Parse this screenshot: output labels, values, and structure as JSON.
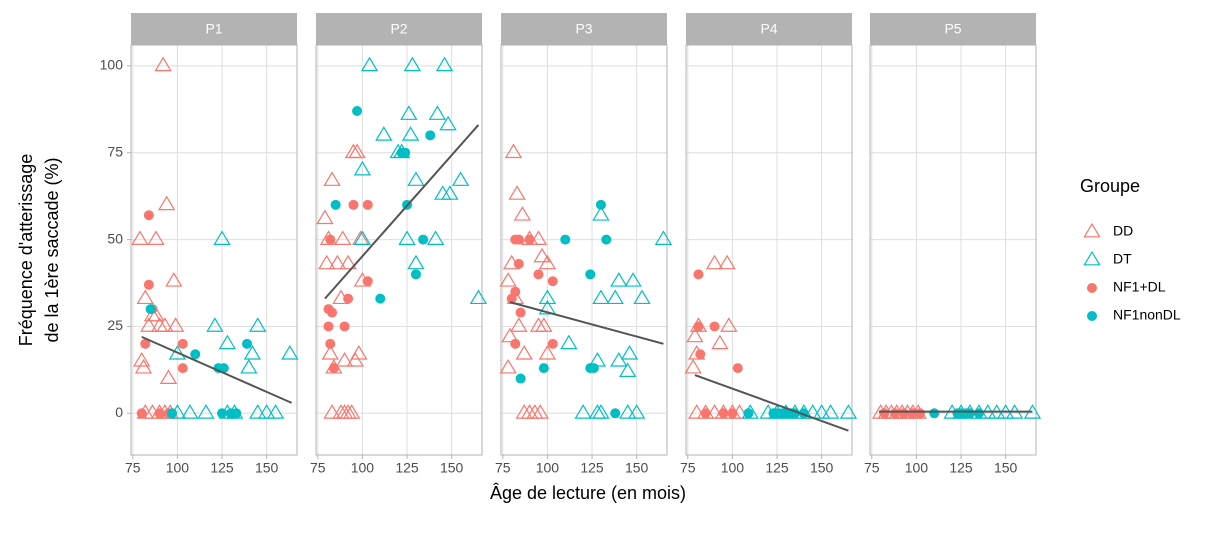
{
  "chart_data": {
    "type": "scatter",
    "xlabel": "Âge de lecture (en mois)",
    "ylabel": [
      "Fréquence d'atterissage",
      "de la 1ère saccade (%)"
    ],
    "legend_title": "Groupe",
    "groups": [
      {
        "name": "DD",
        "color": "#F8766D",
        "marker": "triangle-open"
      },
      {
        "name": "DT",
        "color": "#00BFC4",
        "marker": "triangle-open"
      },
      {
        "name": "NF1+DL",
        "color": "#F8766D",
        "marker": "circle"
      },
      {
        "name": "NF1nonDL",
        "color": "#00BFC4",
        "marker": "circle"
      }
    ],
    "trend_color": "#555555",
    "xlim": [
      74,
      167
    ],
    "xticks": [
      75,
      100,
      125,
      150
    ],
    "ylim": [
      -12,
      106
    ],
    "yticks": [
      0,
      25,
      50,
      75,
      100
    ],
    "grid": true,
    "panels": [
      {
        "title": "P1",
        "series": [
          {
            "x": [
              79,
              82,
              80,
              81,
              84,
              86,
              88,
              90,
              92,
              94,
              95,
              98,
              99,
              82,
              86,
              90,
              93,
              96,
              88,
              93
            ],
            "values": [
              50,
              33,
              15,
              13,
              25,
              28,
              50,
              25,
              100,
              60,
              10,
              38,
              25,
              0,
              0,
              0,
              0,
              0,
              28,
              25
            ]
          },
          {
            "x": [
              125,
              121,
              145,
              128,
              100,
              142,
              163,
              140,
              100,
              107,
              116,
              128,
              132,
              145,
              150,
              155
            ],
            "values": [
              50,
              25,
              25,
              20,
              17,
              17,
              17,
              13,
              0,
              0,
              0,
              0,
              0,
              0,
              0,
              0
            ]
          },
          {
            "x": [
              84,
              84,
              82,
              103,
              103,
              80,
              90,
              95,
              86
            ],
            "values": [
              57,
              37,
              20,
              20,
              13,
              0,
              0,
              0,
              30
            ]
          },
          {
            "x": [
              85,
              110,
              123,
              126,
              139,
              97,
              125,
              130,
              133
            ],
            "values": [
              30,
              17,
              13,
              13,
              20,
              0,
              0,
              0,
              0
            ]
          }
        ],
        "trend": {
          "x": [
            80,
            164
          ],
          "values": [
            22,
            3
          ]
        }
      },
      {
        "title": "P2",
        "series": [
          {
            "x": [
              79,
              80,
              81,
              83,
              86,
              88,
              89,
              92,
              95,
              97,
              99,
              100,
              98,
              90,
              82,
              83,
              90,
              92,
              94,
              88,
              84,
              96
            ],
            "values": [
              56,
              43,
              50,
              67,
              43,
              33,
              50,
              43,
              75,
              75,
              50,
              38,
              17,
              15,
              17,
              0,
              0,
              0,
              0,
              0,
              13,
              15
            ]
          },
          {
            "x": [
              104,
              128,
              146,
              126,
              142,
              112,
              127,
              148,
              120,
              100,
              130,
              155,
              145,
              149,
              100,
              125,
              141,
              130,
              165,
              122
            ],
            "values": [
              100,
              100,
              100,
              86,
              86,
              80,
              80,
              83,
              75,
              70,
              67,
              67,
              63,
              63,
              50,
              50,
              50,
              43,
              33,
              75
            ]
          },
          {
            "x": [
              81,
              83,
              81,
              82,
              84,
              82,
              90,
              95,
              103,
              103,
              92
            ],
            "values": [
              30,
              29,
              25,
              20,
              13,
              50,
              25,
              60,
              60,
              38,
              33
            ]
          },
          {
            "x": [
              85,
              97,
              122,
              124,
              125,
              138,
              134,
              130,
              110
            ],
            "values": [
              60,
              87,
              75,
              75,
              60,
              80,
              50,
              40,
              33
            ]
          }
        ],
        "trend": {
          "x": [
            79,
            165
          ],
          "values": [
            33,
            83
          ]
        }
      },
      {
        "title": "P3",
        "series": [
          {
            "x": [
              81,
              83,
              86,
              80,
              78,
              82,
              84,
              79,
              78,
              87,
              90,
              95,
              95,
              98,
              100,
              90,
              93,
              96,
              87,
              100,
              97
            ],
            "values": [
              75,
              63,
              57,
              43,
              38,
              33,
              25,
              22,
              13,
              17,
              50,
              50,
              25,
              25,
              43,
              0,
              0,
              0,
              0,
              17,
              45
            ]
          },
          {
            "x": [
              165,
              130,
              100,
              148,
              140,
              138,
              153,
              130,
              100,
              112,
              128,
              146,
              140,
              145,
              120,
              128,
              130,
              145,
              150
            ],
            "values": [
              50,
              57,
              33,
              38,
              38,
              33,
              33,
              33,
              30,
              20,
              15,
              17,
              15,
              12,
              0,
              0,
              0,
              0,
              0
            ]
          },
          {
            "x": [
              82,
              84,
              84,
              82,
              85,
              82,
              90,
              95,
              103,
              103,
              80
            ],
            "values": [
              50,
              50,
              43,
              35,
              29,
              20,
              50,
              40,
              38,
              20,
              33
            ]
          },
          {
            "x": [
              130,
              133,
              110,
              124,
              124,
              126,
              98,
              85,
              138
            ],
            "values": [
              60,
              50,
              50,
              40,
              13,
              13,
              13,
              10,
              0
            ]
          }
        ],
        "trend": {
          "x": [
            79,
            165
          ],
          "values": [
            32,
            20
          ]
        }
      },
      {
        "title": "P4",
        "series": [
          {
            "x": [
              79,
              78,
              81,
              90,
              97,
              98,
              93,
              80,
              80,
              85,
              90,
              95,
              100,
              104
            ],
            "values": [
              22,
              13,
              25,
              43,
              43,
              25,
              20,
              17,
              0,
              0,
              0,
              0,
              0,
              0
            ]
          },
          {
            "x": [
              110,
              120,
              125,
              130,
              135,
              140,
              145,
              150,
              155,
              165
            ],
            "values": [
              0,
              0,
              0,
              0,
              0,
              0,
              0,
              0,
              0,
              0
            ]
          },
          {
            "x": [
              81,
              81,
              82,
              90,
              103,
              85,
              95,
              100
            ],
            "values": [
              40,
              25,
              17,
              25,
              13,
              0,
              0,
              0
            ]
          },
          {
            "x": [
              109,
              123,
              125,
              128,
              130,
              133,
              135,
              140
            ],
            "values": [
              0,
              0,
              0,
              0,
              0,
              0,
              0,
              0
            ]
          }
        ],
        "trend": {
          "x": [
            79,
            165
          ],
          "values": [
            11,
            -5
          ]
        }
      },
      {
        "title": "P5",
        "series": [
          {
            "x": [
              80,
              83,
              86,
              89,
              92,
              95,
              98,
              101
            ],
            "values": [
              0,
              0,
              0,
              0,
              0,
              0,
              0,
              0
            ]
          },
          {
            "x": [
              120,
              125,
              130,
              135,
              140,
              145,
              150,
              155,
              165
            ],
            "values": [
              0,
              0,
              0,
              0,
              0,
              0,
              0,
              0,
              0
            ]
          },
          {
            "x": [
              82,
              88,
              93,
              98,
              102
            ],
            "values": [
              0,
              0,
              0,
              0,
              0
            ]
          },
          {
            "x": [
              110,
              123,
              125,
              128,
              130,
              135
            ],
            "values": [
              0,
              0,
              0,
              0,
              0,
              0
            ]
          }
        ],
        "trend": {
          "x": [
            79,
            165
          ],
          "values": [
            0.5,
            0.5
          ]
        }
      }
    ]
  }
}
